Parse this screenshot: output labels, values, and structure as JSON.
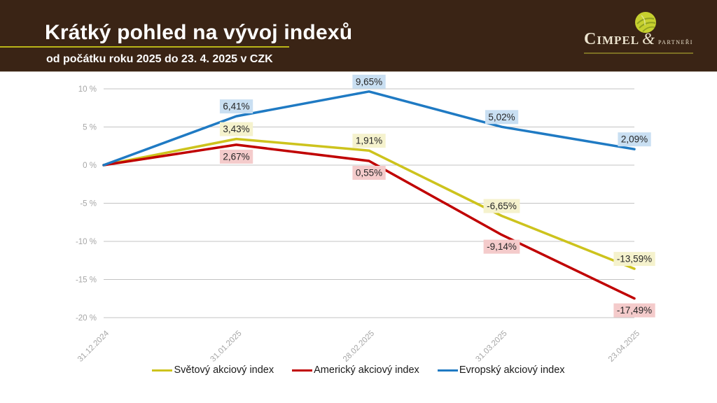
{
  "header": {
    "title": "Krátký pohled na vývoj indexů",
    "subtitle": "od počátku roku 2025 do 23. 4. 2025 v CZK",
    "bg_color": "#3a2415",
    "accent_line_color": "#b9b419",
    "logo": {
      "name": "Cimpel",
      "amp": "&",
      "suffix": "partneři",
      "icon": "leaf-ball-icon",
      "ball_color": "#c6d02f",
      "text_color": "#ece4cf"
    }
  },
  "chart_data": {
    "type": "line",
    "x": [
      "31.12.2024",
      "31.01.2025",
      "28.02.2025",
      "31.03.2025",
      "23.04.2025"
    ],
    "series": [
      {
        "name": "Světový akciový index",
        "color": "#cdc31d",
        "label_bg": "#f5f2cd",
        "label_side": "above",
        "values": [
          0,
          3.43,
          1.91,
          -6.65,
          -13.59
        ],
        "labels": [
          "",
          "3,43%",
          "1,91%",
          "-6,65%",
          "-13,59%"
        ]
      },
      {
        "name": "Americký akciový index",
        "color": "#c00000",
        "label_bg": "#f4cbcb",
        "label_side": "below",
        "values": [
          0,
          2.67,
          0.55,
          -9.14,
          -17.49
        ],
        "labels": [
          "",
          "2,67%",
          "0,55%",
          "-9,14%",
          "-17,49%"
        ]
      },
      {
        "name": "Evropský akciový index",
        "color": "#1f7ac3",
        "label_bg": "#c9dff2",
        "label_side": "above",
        "values": [
          0,
          6.41,
          9.65,
          5.02,
          2.09
        ],
        "labels": [
          "",
          "6,41%",
          "9,65%",
          "5,02%",
          "2,09%"
        ]
      }
    ],
    "ylim": [
      -20,
      10
    ],
    "yticks": [
      10,
      5,
      0,
      -5,
      -10,
      -15,
      -20
    ],
    "ytick_labels": [
      "10 %",
      "5 %",
      "0 %",
      "-5 %",
      "-10 %",
      "-15 %",
      "-20 %"
    ],
    "grid": true,
    "grid_color": "#c3c3c3",
    "axis_color": "#a6a6a6",
    "label_text_color": "#262626",
    "legend_position": "bottom"
  }
}
